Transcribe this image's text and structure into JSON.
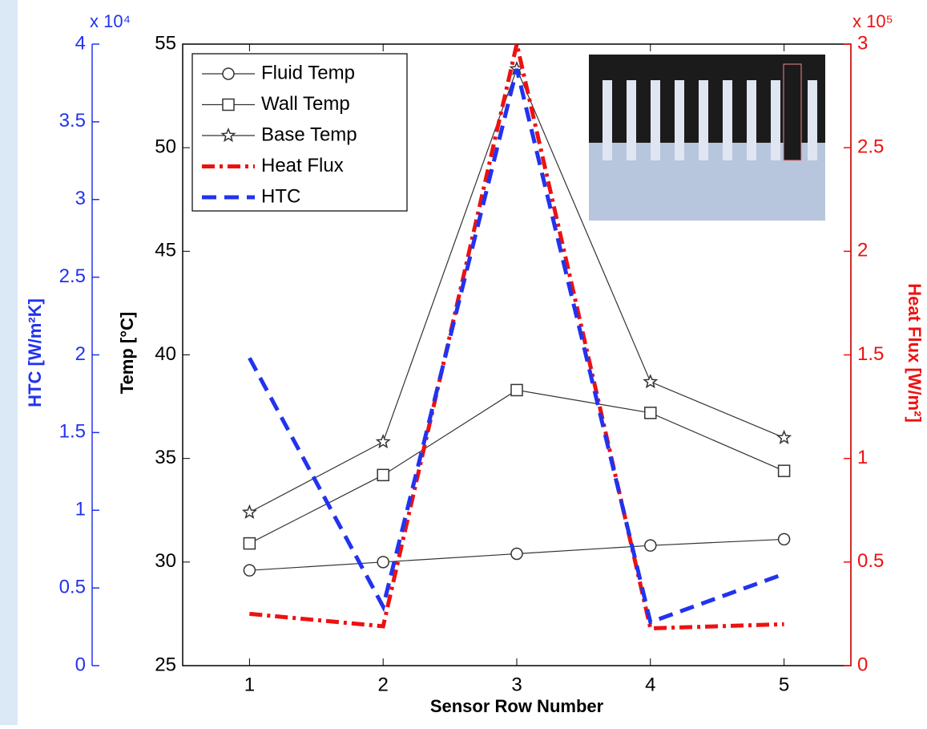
{
  "chart_data": {
    "type": "line",
    "xlabel": "Sensor Row Number",
    "x": [
      1,
      2,
      3,
      4,
      5
    ],
    "xlim": [
      0.5,
      5.5
    ],
    "xticks": [
      1,
      2,
      3,
      4,
      5
    ],
    "ylabel": "Temp [°C]",
    "ylim": [
      25,
      55
    ],
    "yticks": [
      25,
      30,
      35,
      40,
      45,
      50,
      55
    ],
    "y2label": "Heat Flux [W/m²]",
    "y2lim": [
      0,
      3
    ],
    "y2ticks": [
      0,
      0.5,
      1,
      1.5,
      2,
      2.5,
      3
    ],
    "y2_multiplier": "x 10⁵",
    "y2_color": "#ee1111",
    "y3label": "HTC [W/m²K]",
    "y3lim": [
      0,
      4
    ],
    "y3ticks": [
      0,
      0.5,
      1,
      1.5,
      2,
      2.5,
      3,
      3.5,
      4
    ],
    "y3_multiplier": "x 10⁴",
    "y3_color": "#2233ee",
    "grid": false,
    "legend": "upper left",
    "series": [
      {
        "name": "Fluid Temp",
        "color": "#333333",
        "marker": "circle",
        "linestyle": "solid",
        "axis": "y",
        "values": [
          29.6,
          30.0,
          30.4,
          30.8,
          31.1
        ]
      },
      {
        "name": "Wall Temp",
        "color": "#333333",
        "marker": "square",
        "linestyle": "solid",
        "axis": "y",
        "values": [
          30.9,
          34.2,
          38.3,
          37.2,
          34.4
        ]
      },
      {
        "name": "Base Temp",
        "color": "#333333",
        "marker": "star",
        "linestyle": "solid",
        "axis": "y",
        "values": [
          32.4,
          35.8,
          53.8,
          38.7,
          36.0
        ]
      },
      {
        "name": "Heat Flux",
        "color": "#ee1111",
        "marker": "none",
        "linestyle": "dashdot",
        "axis": "y2",
        "values": [
          0.25,
          0.19,
          3.0,
          0.18,
          0.2
        ]
      },
      {
        "name": "HTC",
        "color": "#2233ee",
        "marker": "none",
        "linestyle": "dashed",
        "axis": "y3",
        "values": [
          1.98,
          0.38,
          3.84,
          0.28,
          0.59
        ]
      }
    ]
  }
}
